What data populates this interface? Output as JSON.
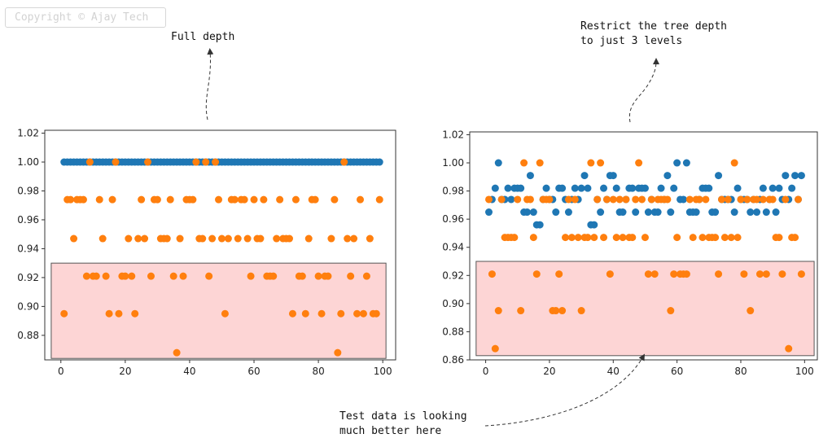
{
  "watermark": "Copyright © Ajay Tech",
  "annotations": {
    "full_depth": "Full depth",
    "restrict_line1": "Restrict the tree depth",
    "restrict_line2": "to just 3 levels",
    "test_line1": "Test data is looking",
    "test_line2": "much better here"
  },
  "colors": {
    "train": "#1f77b4",
    "test": "#ff7f0e",
    "highlight_fill": "#fdd5d5",
    "highlight_edge": "#555555"
  },
  "chart_data": [
    {
      "type": "scatter",
      "title": "",
      "xlabel": "",
      "ylabel": "",
      "xlim": [
        -5,
        104
      ],
      "ylim": [
        0.863,
        1.022
      ],
      "xticks": [
        0,
        20,
        40,
        60,
        80,
        100
      ],
      "yticks": [
        0.88,
        0.9,
        0.92,
        0.94,
        0.96,
        0.98,
        1.0,
        1.02
      ],
      "ytick_labels": [
        "0.88",
        "0.90",
        "0.92",
        "0.94",
        "0.96",
        "0.98",
        "1.00",
        "1.02"
      ],
      "highlight": {
        "x": [
          -3,
          101
        ],
        "y": [
          0.864,
          0.93
        ]
      },
      "series": [
        {
          "color": "#1f77b4",
          "x": [
            1,
            2,
            3,
            4,
            5,
            6,
            7,
            8,
            9,
            10,
            11,
            12,
            13,
            14,
            15,
            16,
            17,
            18,
            19,
            20,
            21,
            22,
            23,
            24,
            25,
            26,
            27,
            28,
            29,
            30,
            31,
            32,
            33,
            34,
            35,
            36,
            37,
            38,
            39,
            40,
            41,
            42,
            43,
            44,
            45,
            46,
            47,
            48,
            49,
            50,
            51,
            52,
            53,
            54,
            55,
            56,
            57,
            58,
            59,
            60,
            61,
            62,
            63,
            64,
            65,
            66,
            67,
            68,
            69,
            70,
            71,
            72,
            73,
            74,
            75,
            76,
            77,
            78,
            79,
            80,
            81,
            82,
            83,
            84,
            85,
            86,
            87,
            88,
            89,
            90,
            91,
            92,
            93,
            94,
            95,
            96,
            97,
            98,
            99
          ],
          "y": [
            1.0,
            1.0,
            1.0,
            1.0,
            1.0,
            1.0,
            1.0,
            1.0,
            1.0,
            1.0,
            1.0,
            1.0,
            1.0,
            1.0,
            1.0,
            1.0,
            1.0,
            1.0,
            1.0,
            1.0,
            1.0,
            1.0,
            1.0,
            1.0,
            1.0,
            1.0,
            1.0,
            1.0,
            1.0,
            1.0,
            1.0,
            1.0,
            1.0,
            1.0,
            1.0,
            1.0,
            1.0,
            1.0,
            1.0,
            1.0,
            1.0,
            1.0,
            1.0,
            1.0,
            1.0,
            1.0,
            1.0,
            1.0,
            1.0,
            1.0,
            1.0,
            1.0,
            1.0,
            1.0,
            1.0,
            1.0,
            1.0,
            1.0,
            1.0,
            1.0,
            1.0,
            1.0,
            1.0,
            1.0,
            1.0,
            1.0,
            1.0,
            1.0,
            1.0,
            1.0,
            1.0,
            1.0,
            1.0,
            1.0,
            1.0,
            1.0,
            1.0,
            1.0,
            1.0,
            1.0,
            1.0,
            1.0,
            1.0,
            1.0,
            1.0,
            1.0,
            1.0,
            1.0,
            1.0,
            1.0,
            1.0,
            1.0,
            1.0,
            1.0,
            1.0,
            1.0,
            1.0,
            1.0,
            1.0
          ]
        },
        {
          "color": "#ff7f0e",
          "x": [
            1,
            2,
            3,
            4,
            5,
            6,
            7,
            8,
            9,
            10,
            11,
            12,
            13,
            14,
            15,
            16,
            17,
            18,
            19,
            20,
            21,
            22,
            23,
            24,
            25,
            26,
            27,
            28,
            29,
            30,
            31,
            32,
            33,
            34,
            35,
            36,
            37,
            38,
            39,
            40,
            41,
            42,
            43,
            44,
            45,
            46,
            47,
            48,
            49,
            50,
            51,
            52,
            53,
            54,
            55,
            56,
            57,
            58,
            59,
            60,
            61,
            62,
            63,
            64,
            65,
            66,
            67,
            68,
            69,
            70,
            71,
            72,
            73,
            74,
            75,
            76,
            77,
            78,
            79,
            80,
            81,
            82,
            83,
            84,
            85,
            86,
            87,
            88,
            89,
            90,
            91,
            92,
            93,
            94,
            95,
            96,
            97,
            98,
            99
          ],
          "y": [
            0.895,
            0.974,
            0.974,
            0.947,
            0.974,
            0.974,
            0.974,
            0.921,
            1.0,
            0.921,
            0.921,
            0.974,
            0.947,
            0.921,
            0.895,
            0.974,
            1.0,
            0.895,
            0.921,
            0.921,
            0.947,
            0.921,
            0.895,
            0.947,
            0.974,
            0.947,
            1.0,
            0.921,
            0.974,
            0.974,
            0.947,
            0.947,
            0.947,
            0.974,
            0.921,
            0.868,
            0.947,
            0.921,
            0.974,
            0.974,
            0.974,
            1.0,
            0.947,
            0.947,
            1.0,
            0.921,
            0.947,
            1.0,
            0.974,
            0.947,
            0.895,
            0.947,
            0.974,
            0.974,
            0.947,
            0.974,
            0.974,
            0.947,
            0.921,
            0.974,
            0.947,
            0.947,
            0.974,
            0.921,
            0.921,
            0.921,
            0.947,
            0.974,
            0.947,
            0.947,
            0.947,
            0.895,
            0.974,
            0.921,
            0.921,
            0.895,
            0.947,
            0.974,
            0.974,
            0.921,
            0.895,
            0.921,
            0.921,
            0.947,
            0.974,
            0.868,
            0.895,
            1.0,
            0.947,
            0.921,
            0.947,
            0.895,
            0.974,
            0.895,
            0.921,
            0.947,
            0.895,
            0.895,
            0.974
          ]
        }
      ]
    },
    {
      "type": "scatter",
      "title": "",
      "xlabel": "",
      "ylabel": "",
      "xlim": [
        -5,
        104
      ],
      "ylim": [
        0.86,
        1.022
      ],
      "xticks": [
        0,
        20,
        40,
        60,
        80,
        100
      ],
      "yticks": [
        0.86,
        0.88,
        0.9,
        0.92,
        0.94,
        0.96,
        0.98,
        1.0,
        1.02
      ],
      "ytick_labels": [
        "0.86",
        "0.88",
        "0.90",
        "0.92",
        "0.94",
        "0.96",
        "0.98",
        "1.00",
        "1.02"
      ],
      "highlight": {
        "x": [
          -3,
          103
        ],
        "y": [
          0.863,
          0.93
        ]
      },
      "series": [
        {
          "color": "#1f77b4",
          "x": [
            1,
            2,
            3,
            4,
            5,
            6,
            7,
            8,
            9,
            10,
            11,
            12,
            13,
            14,
            15,
            16,
            17,
            18,
            19,
            20,
            21,
            22,
            23,
            24,
            25,
            26,
            27,
            28,
            29,
            30,
            31,
            32,
            33,
            34,
            35,
            36,
            37,
            38,
            39,
            40,
            41,
            42,
            43,
            44,
            45,
            46,
            47,
            48,
            49,
            50,
            51,
            52,
            53,
            54,
            55,
            56,
            57,
            58,
            59,
            60,
            61,
            62,
            63,
            64,
            65,
            66,
            67,
            68,
            69,
            70,
            71,
            72,
            73,
            74,
            75,
            76,
            77,
            78,
            79,
            80,
            81,
            82,
            83,
            84,
            85,
            86,
            87,
            88,
            89,
            90,
            91,
            92,
            93,
            94,
            95,
            96,
            97,
            98,
            99
          ],
          "y": [
            0.965,
            0.974,
            0.982,
            1.0,
            0.974,
            0.974,
            0.982,
            0.974,
            0.982,
            0.982,
            0.982,
            0.965,
            0.965,
            0.991,
            0.965,
            0.956,
            0.956,
            0.974,
            0.982,
            0.974,
            0.974,
            0.965,
            0.982,
            0.982,
            0.974,
            0.965,
            0.974,
            0.982,
            0.974,
            0.982,
            0.991,
            0.982,
            0.956,
            0.956,
            0.974,
            0.965,
            0.982,
            0.974,
            0.991,
            0.991,
            0.982,
            0.965,
            0.965,
            0.974,
            0.982,
            0.982,
            0.965,
            0.982,
            0.982,
            0.982,
            0.965,
            0.974,
            0.965,
            0.965,
            0.982,
            0.974,
            0.991,
            0.965,
            0.982,
            1.0,
            0.974,
            0.974,
            1.0,
            0.965,
            0.965,
            0.965,
            0.974,
            0.982,
            0.982,
            0.982,
            0.965,
            0.965,
            0.991,
            0.974,
            0.974,
            0.974,
            0.974,
            0.965,
            0.982,
            0.974,
            0.974,
            0.974,
            0.965,
            0.974,
            0.965,
            0.974,
            0.982,
            0.965,
            0.974,
            0.982,
            0.965,
            0.982,
            0.974,
            0.991,
            0.974,
            0.982,
            0.991,
            0.974,
            0.991
          ]
        },
        {
          "color": "#ff7f0e",
          "x": [
            1,
            2,
            3,
            4,
            5,
            6,
            7,
            8,
            9,
            10,
            11,
            12,
            13,
            14,
            15,
            16,
            17,
            18,
            19,
            20,
            21,
            22,
            23,
            24,
            25,
            26,
            27,
            28,
            29,
            30,
            31,
            32,
            33,
            34,
            35,
            36,
            37,
            38,
            39,
            40,
            41,
            42,
            43,
            44,
            45,
            46,
            47,
            48,
            49,
            50,
            51,
            52,
            53,
            54,
            55,
            56,
            57,
            58,
            59,
            60,
            61,
            62,
            63,
            64,
            65,
            66,
            67,
            68,
            69,
            70,
            71,
            72,
            73,
            74,
            75,
            76,
            77,
            78,
            79,
            80,
            81,
            82,
            83,
            84,
            85,
            86,
            87,
            88,
            89,
            90,
            91,
            92,
            93,
            94,
            95,
            96,
            97,
            98,
            99
          ],
          "y": [
            0.974,
            0.921,
            0.868,
            0.895,
            0.974,
            0.947,
            0.947,
            0.947,
            0.947,
            0.974,
            0.895,
            1.0,
            0.974,
            0.974,
            0.947,
            0.921,
            1.0,
            0.974,
            0.974,
            0.974,
            0.895,
            0.895,
            0.921,
            0.895,
            0.947,
            0.974,
            0.947,
            0.974,
            0.947,
            0.895,
            0.947,
            0.947,
            1.0,
            0.947,
            0.974,
            1.0,
            0.947,
            0.974,
            0.921,
            0.974,
            0.947,
            0.974,
            0.947,
            0.974,
            0.947,
            0.947,
            0.974,
            1.0,
            0.974,
            0.947,
            0.921,
            0.974,
            0.921,
            0.974,
            0.974,
            0.974,
            0.974,
            0.895,
            0.921,
            0.947,
            0.921,
            0.921,
            0.921,
            0.974,
            0.947,
            0.974,
            0.974,
            0.947,
            0.974,
            0.947,
            0.947,
            0.947,
            0.921,
            0.974,
            0.947,
            0.974,
            0.947,
            1.0,
            0.947,
            0.974,
            0.921,
            0.974,
            0.895,
            0.974,
            0.974,
            0.921,
            0.974,
            0.921,
            0.974,
            0.974,
            0.947,
            0.947,
            0.921,
            0.974,
            0.868,
            0.947,
            0.947,
            0.974,
            0.921
          ]
        }
      ]
    }
  ]
}
